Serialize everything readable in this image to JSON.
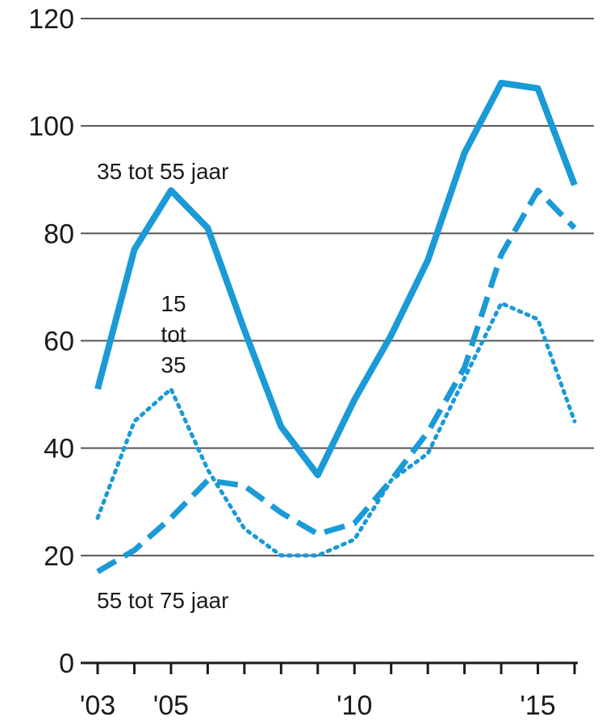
{
  "chart_data": {
    "type": "line",
    "title": "",
    "xlabel": "",
    "ylabel": "",
    "ylim": [
      0,
      120
    ],
    "yticks": [
      0,
      20,
      40,
      60,
      80,
      100,
      120
    ],
    "x": [
      2003,
      2004,
      2005,
      2006,
      2007,
      2008,
      2009,
      2010,
      2011,
      2012,
      2013,
      2014,
      2015,
      2016
    ],
    "xticks": [
      {
        "value": 2003,
        "label": "'03"
      },
      {
        "value": 2005,
        "label": "'05"
      },
      {
        "value": 2010,
        "label": "'10"
      },
      {
        "value": 2015,
        "label": "'15"
      }
    ],
    "grid": true,
    "series": [
      {
        "label_lines": [
          "35 tot 55 jaar"
        ],
        "style": "solid",
        "color": "#1a9ad6",
        "values": [
          51,
          77,
          88,
          81,
          62,
          44,
          35,
          49,
          61,
          75,
          95,
          108,
          107,
          89
        ]
      },
      {
        "label_lines": [
          "15",
          "tot",
          "35"
        ],
        "style": "dotted",
        "color": "#1a9ad6",
        "values": [
          27,
          45,
          51,
          36,
          25,
          20,
          20,
          23,
          34,
          39,
          53,
          67,
          64,
          45
        ]
      },
      {
        "label_lines": [
          "55 tot 75 jaar"
        ],
        "style": "dashed",
        "color": "#1a9ad6",
        "values": [
          17,
          21,
          27,
          34,
          33,
          28,
          24,
          26,
          34,
          43,
          55,
          76,
          88,
          81
        ]
      }
    ]
  }
}
